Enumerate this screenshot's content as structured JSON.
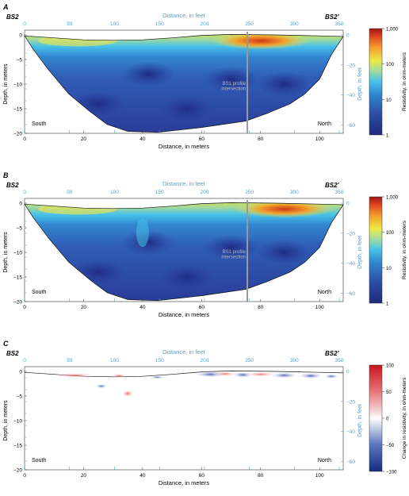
{
  "panels": [
    {
      "id": "A",
      "letter": "A",
      "start_label": "BS2",
      "end_label": "BS2'",
      "top_axis_title": "Distance, in feet",
      "bottom_axis_title": "Distance, in meters",
      "left_axis_title": "Depth, in meters",
      "right_axis_title": "Depth, in feet",
      "south_label": "South",
      "north_label": "North",
      "intersection_label_1": "BS1 profile",
      "intersection_label_2": "intersection",
      "colorbar_title": "Resistivity, in ohm-meters",
      "colorbar_ticks": [
        "1,000",
        "100",
        "10",
        "1"
      ],
      "kind": "resistivity"
    },
    {
      "id": "B",
      "letter": "B",
      "start_label": "BS2",
      "end_label": "BS2'",
      "top_axis_title": "Distance, in feet",
      "bottom_axis_title": "Distance, in meters",
      "left_axis_title": "Depth, in meters",
      "right_axis_title": "Depth, in feet",
      "south_label": "South",
      "north_label": "North",
      "intersection_label_1": "BS1 profile",
      "intersection_label_2": "intersection",
      "colorbar_title": "Resistivity, in ohm-meters",
      "colorbar_ticks": [
        "1,000",
        "100",
        "10",
        "1"
      ],
      "kind": "resistivity"
    },
    {
      "id": "C",
      "letter": "C",
      "start_label": "BS2",
      "end_label": "BS2'",
      "top_axis_title": "Distance, in feet",
      "bottom_axis_title": "Distance, in meters",
      "left_axis_title": "Depth, in meters",
      "right_axis_title": "Depth, in feet",
      "south_label": "South",
      "north_label": "North",
      "colorbar_title": "Change in resistivity, in ohm-meters",
      "colorbar_ticks": [
        "100",
        "50",
        "0",
        "−50",
        "−100"
      ],
      "kind": "change"
    }
  ],
  "axes": {
    "x_meters_ticks": [
      "0",
      "20",
      "40",
      "60",
      "80",
      "100"
    ],
    "x_feet_ticks": [
      "0",
      "50",
      "100",
      "150",
      "200",
      "250",
      "300",
      "350"
    ],
    "depth_m_ticks": [
      "0",
      "−5",
      "−10",
      "−15",
      "−20"
    ],
    "depth_ft_ticks": [
      "0",
      "−20",
      "−40",
      "−60"
    ]
  },
  "colors": {
    "resistivity_scale": [
      "#2b2f8f",
      "#2f5fb8",
      "#3fb6e8",
      "#9fd6a0",
      "#f2e64a",
      "#f39a2b",
      "#c8251f"
    ],
    "change_scale": [
      "#1f3a93",
      "#8aa3d6",
      "#ffffff",
      "#f2a3a3",
      "#d7191c"
    ],
    "axis_color": "#4da3d6",
    "intersection_line": "#9a9a9a"
  }
}
